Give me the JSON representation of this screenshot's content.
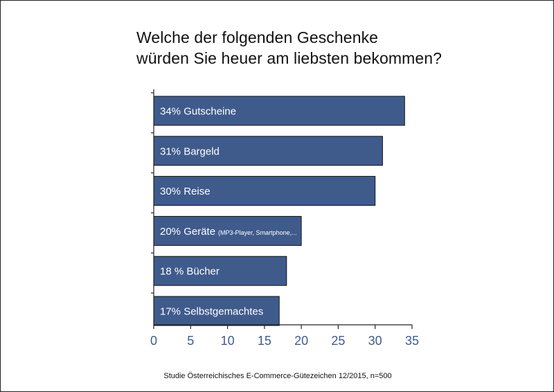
{
  "title_lines": [
    "Welche der folgenden Geschenke",
    "würden Sie heuer am liebsten bekommen?"
  ],
  "source": "Studie Österreichisches E-Commerce-Gütezeichen 12/2015, n=500",
  "colors": {
    "bar": "#3f5b8c",
    "tick": "#3f5b8c"
  },
  "chart_data": {
    "type": "bar",
    "orientation": "horizontal",
    "title": "Welche der folgenden Geschenke würden Sie heuer am liebsten bekommen?",
    "categories": [
      "34% Gutscheine",
      "31% Bargeld",
      "30% Reise",
      "20% Geräte (MP3-Player, Smartphone,...",
      "18 % Bücher",
      "17% Selbstgemachtes"
    ],
    "label_main": [
      "34% Gutscheine",
      "31% Bargeld",
      "30% Reise",
      "20% Geräte",
      "18 % Bücher",
      "17% Selbstgemachtes"
    ],
    "label_sub": [
      "",
      "",
      "",
      "(MP3-Player, Smartphone,...",
      "",
      ""
    ],
    "values": [
      34,
      31,
      30,
      20,
      18,
      17
    ],
    "xlim": [
      0,
      35
    ],
    "xticks": [
      0,
      5,
      10,
      15,
      20,
      25,
      30,
      35
    ],
    "grid": false,
    "xlabel": "",
    "ylabel": ""
  }
}
